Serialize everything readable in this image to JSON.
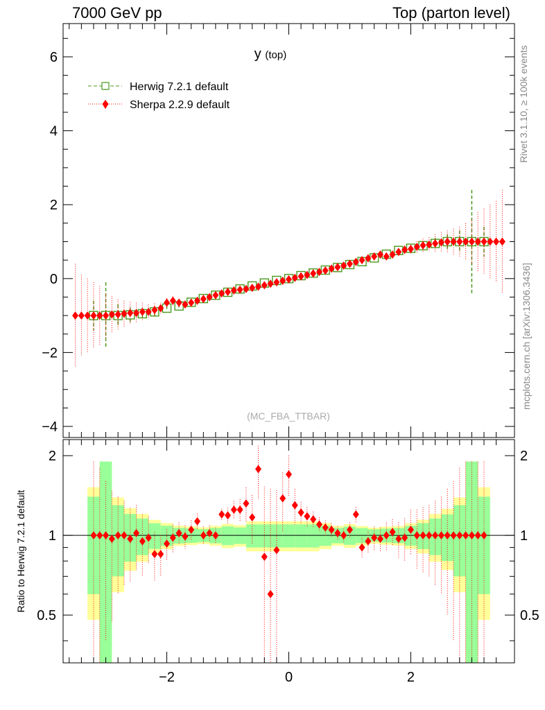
{
  "header": {
    "left": "7000 GeV pp",
    "right": "Top (parton level)"
  },
  "side_labels": {
    "rivet": "Rivet 3.1.10, ≥ 100k events",
    "mcplots": "mcplots.cern.ch [arXiv:1306.3436]"
  },
  "colors": {
    "herwig": "#4a9a1e",
    "sherpa": "#ff0000",
    "band_inner": "#99ff99",
    "band_outer": "#ffff99"
  },
  "chart_data": [
    {
      "type": "line",
      "title": "y",
      "title_sub": "(top)",
      "analysis_label": "(MC_FBA_TTBAR)",
      "xlim": [
        -3.7,
        3.7
      ],
      "ylim": [
        -4.3,
        6.9
      ],
      "x_ticks": [
        -2,
        0,
        2
      ],
      "y_ticks": [
        -4,
        -2,
        0,
        2,
        4,
        6
      ],
      "y_tick_labels": [
        "−4",
        "−2",
        "0",
        "2",
        "4",
        "6"
      ],
      "legend_position": "top-left",
      "series": [
        {
          "name": "Herwig 7.2.1 default",
          "style": "dashed green open squares",
          "x": [
            -3.2,
            -3.0,
            -2.8,
            -2.6,
            -2.4,
            -2.2,
            -2.0,
            -1.8,
            -1.6,
            -1.4,
            -1.2,
            -1.0,
            -0.8,
            -0.6,
            -0.4,
            -0.2,
            0.0,
            0.2,
            0.4,
            0.6,
            0.8,
            1.0,
            1.2,
            1.4,
            1.6,
            1.8,
            2.0,
            2.2,
            2.4,
            2.6,
            2.8,
            3.0,
            3.2
          ],
          "y": [
            -1.0,
            -1.0,
            -1.0,
            -0.98,
            -0.95,
            -0.9,
            -0.8,
            -0.74,
            -0.64,
            -0.54,
            -0.45,
            -0.37,
            -0.28,
            -0.2,
            -0.12,
            -0.05,
            0.0,
            0.08,
            0.15,
            0.23,
            0.3,
            0.38,
            0.46,
            0.56,
            0.66,
            0.76,
            0.82,
            0.89,
            0.95,
            1.0,
            1.0,
            1.0,
            1.0
          ],
          "err": [
            0.4,
            0.9,
            0.3,
            0.2,
            0.15,
            0.1,
            0.07,
            0.05,
            0.04,
            0.03,
            0.03,
            0.03,
            0.02,
            0.02,
            0.02,
            0.02,
            0.02,
            0.02,
            0.02,
            0.02,
            0.02,
            0.03,
            0.03,
            0.03,
            0.04,
            0.05,
            0.07,
            0.1,
            0.15,
            0.2,
            0.3,
            1.4,
            0.4
          ]
        },
        {
          "name": "Sherpa 2.2.9 default",
          "style": "dotted red diamonds",
          "x": [
            -3.5,
            -3.4,
            -3.3,
            -3.2,
            -3.1,
            -3.0,
            -2.9,
            -2.8,
            -2.7,
            -2.6,
            -2.5,
            -2.4,
            -2.3,
            -2.2,
            -2.1,
            -2.0,
            -1.9,
            -1.8,
            -1.7,
            -1.6,
            -1.5,
            -1.4,
            -1.3,
            -1.2,
            -1.1,
            -1.0,
            -0.9,
            -0.8,
            -0.7,
            -0.6,
            -0.5,
            -0.4,
            -0.3,
            -0.2,
            -0.1,
            0.0,
            0.1,
            0.2,
            0.3,
            0.4,
            0.5,
            0.6,
            0.7,
            0.8,
            0.9,
            1.0,
            1.1,
            1.2,
            1.3,
            1.4,
            1.5,
            1.6,
            1.7,
            1.8,
            1.9,
            2.0,
            2.1,
            2.2,
            2.3,
            2.4,
            2.5,
            2.6,
            2.7,
            2.8,
            2.9,
            3.0,
            3.1,
            3.2,
            3.3,
            3.4,
            3.5
          ],
          "y": [
            -1.0,
            -1.0,
            -1.0,
            -1.0,
            -1.0,
            -1.0,
            -0.97,
            -0.97,
            -0.95,
            -0.93,
            -0.93,
            -0.9,
            -0.9,
            -0.85,
            -0.8,
            -0.65,
            -0.6,
            -0.65,
            -0.7,
            -0.65,
            -0.6,
            -0.55,
            -0.5,
            -0.45,
            -0.4,
            -0.36,
            -0.32,
            -0.3,
            -0.28,
            -0.25,
            -0.22,
            -0.18,
            -0.14,
            -0.1,
            -0.06,
            -0.02,
            0.02,
            0.06,
            0.1,
            0.14,
            0.18,
            0.22,
            0.27,
            0.31,
            0.35,
            0.4,
            0.45,
            0.5,
            0.55,
            0.6,
            0.65,
            0.6,
            0.65,
            0.72,
            0.78,
            0.8,
            0.86,
            0.9,
            0.92,
            0.95,
            0.98,
            1.0,
            1.0,
            1.0,
            1.0,
            1.0,
            1.0,
            1.0,
            1.0,
            1.0,
            1.0
          ],
          "err": [
            1.4,
            1.1,
            1.0,
            0.9,
            0.8,
            0.6,
            0.5,
            0.4,
            0.35,
            0.3,
            0.28,
            0.25,
            0.2,
            0.18,
            0.15,
            0.12,
            0.12,
            0.1,
            0.1,
            0.09,
            0.08,
            0.08,
            0.07,
            0.07,
            0.06,
            0.06,
            0.06,
            0.05,
            0.05,
            0.05,
            0.05,
            0.05,
            0.05,
            0.05,
            0.05,
            0.05,
            0.05,
            0.05,
            0.05,
            0.05,
            0.05,
            0.05,
            0.05,
            0.05,
            0.06,
            0.06,
            0.06,
            0.07,
            0.07,
            0.08,
            0.08,
            0.09,
            0.1,
            0.1,
            0.12,
            0.12,
            0.15,
            0.18,
            0.2,
            0.25,
            0.28,
            0.3,
            0.35,
            0.4,
            0.5,
            0.6,
            0.8,
            0.9,
            1.0,
            1.1,
            1.4
          ]
        }
      ]
    },
    {
      "type": "line",
      "ylabel": "Ratio to Herwig 7.2.1 default",
      "xlim": [
        -3.7,
        3.7
      ],
      "ylim": [
        0.33,
        2.3
      ],
      "y_scale": "log",
      "x_ticks": [
        -2,
        0,
        2
      ],
      "x_tick_labels": [
        "−2",
        "0",
        "2"
      ],
      "y_ticks": [
        0.5,
        1,
        2
      ],
      "y_tick_labels": [
        "0.5",
        "1",
        "2"
      ],
      "reference_line": 1,
      "series": [
        {
          "name": "Sherpa 2.2.9 default",
          "style": "dotted red diamonds",
          "x": [
            -3.2,
            -3.1,
            -3.0,
            -2.9,
            -2.8,
            -2.7,
            -2.6,
            -2.5,
            -2.4,
            -2.3,
            -2.2,
            -2.1,
            -2.0,
            -1.9,
            -1.8,
            -1.7,
            -1.6,
            -1.5,
            -1.4,
            -1.3,
            -1.2,
            -1.1,
            -1.0,
            -0.9,
            -0.8,
            -0.7,
            -0.6,
            -0.5,
            -0.4,
            -0.3,
            -0.2,
            -0.1,
            0.0,
            0.1,
            0.2,
            0.3,
            0.4,
            0.5,
            0.6,
            0.7,
            0.8,
            0.9,
            1.0,
            1.1,
            1.2,
            1.3,
            1.4,
            1.5,
            1.6,
            1.7,
            1.8,
            1.9,
            2.0,
            2.1,
            2.2,
            2.3,
            2.4,
            2.5,
            2.6,
            2.7,
            2.8,
            2.9,
            3.0,
            3.1,
            3.2
          ],
          "y": [
            1.0,
            1.0,
            1.0,
            0.97,
            1.0,
            1.0,
            0.97,
            1.02,
            0.95,
            0.98,
            0.85,
            0.85,
            0.93,
            0.98,
            1.02,
            0.99,
            1.05,
            1.13,
            1.0,
            1.02,
            1.0,
            1.2,
            1.19,
            1.25,
            1.25,
            1.32,
            1.17,
            1.78,
            0.83,
            0.6,
            0.88,
            1.38,
            1.7,
            1.3,
            1.22,
            1.18,
            1.15,
            1.1,
            1.07,
            1.05,
            1.02,
            1.0,
            1.05,
            1.2,
            0.9,
            0.95,
            0.98,
            0.97,
            1.0,
            1.03,
            0.97,
            0.98,
            1.05,
            1.0,
            1.0,
            1.0,
            1.0,
            1.0,
            1.0,
            1.0,
            1.0,
            1.0,
            1.0,
            1.0,
            1.0
          ],
          "err": [
            0.9,
            0.8,
            0.6,
            0.5,
            0.4,
            0.35,
            0.3,
            0.28,
            0.25,
            0.2,
            0.18,
            0.15,
            0.12,
            0.12,
            0.1,
            0.1,
            0.09,
            0.08,
            0.08,
            0.07,
            0.07,
            0.06,
            0.08,
            0.1,
            0.12,
            0.2,
            0.25,
            0.4,
            0.7,
            0.9,
            0.6,
            0.35,
            0.3,
            0.2,
            0.12,
            0.1,
            0.08,
            0.07,
            0.07,
            0.06,
            0.06,
            0.06,
            0.07,
            0.08,
            0.08,
            0.09,
            0.1,
            0.1,
            0.12,
            0.12,
            0.15,
            0.18,
            0.2,
            0.25,
            0.28,
            0.3,
            0.35,
            0.4,
            0.5,
            0.6,
            0.8,
            0.9,
            0.9,
            0.9,
            0.9
          ]
        }
      ]
    }
  ]
}
